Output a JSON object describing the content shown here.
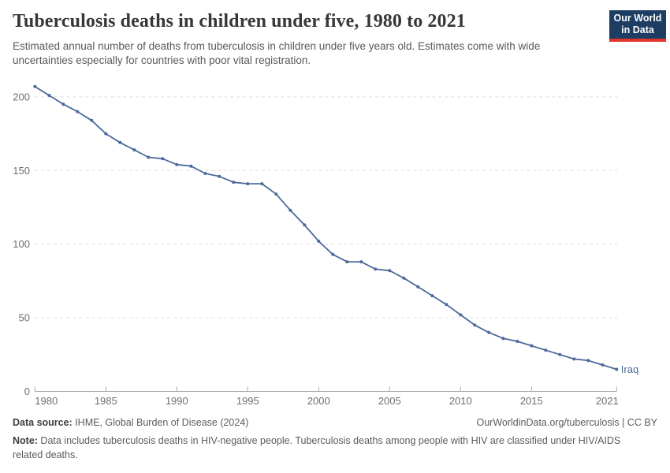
{
  "header": {
    "title": "Tuberculosis deaths in children under five, 1980 to 2021",
    "subtitle": "Estimated annual number of deaths from tuberculosis in children under five years old. Estimates come with wide uncertainties especially for countries with poor vital registration.",
    "logo_line1": "Our World",
    "logo_line2": "in Data"
  },
  "chart_data": {
    "type": "line",
    "title": "Tuberculosis deaths in children under five, 1980 to 2021",
    "xlabel": "",
    "ylabel": "",
    "xlim": [
      1980,
      2021
    ],
    "ylim": [
      0,
      210
    ],
    "x_ticks": [
      1980,
      1985,
      1990,
      1995,
      2000,
      2005,
      2010,
      2015,
      2021
    ],
    "y_ticks": [
      0,
      50,
      100,
      150,
      200
    ],
    "grid": "horizontal-dashed",
    "legend_position": "end-of-line-label",
    "x": [
      1980,
      1981,
      1982,
      1983,
      1984,
      1985,
      1986,
      1987,
      1988,
      1989,
      1990,
      1991,
      1992,
      1993,
      1994,
      1995,
      1996,
      1997,
      1998,
      1999,
      2000,
      2001,
      2002,
      2003,
      2004,
      2005,
      2006,
      2007,
      2008,
      2009,
      2010,
      2011,
      2012,
      2013,
      2014,
      2015,
      2016,
      2017,
      2018,
      2019,
      2020,
      2021
    ],
    "series": [
      {
        "name": "Iraq",
        "color": "#4c6a9c",
        "values": [
          207,
          201,
          195,
          190,
          184,
          175,
          169,
          164,
          159,
          158,
          154,
          153,
          148,
          146,
          142,
          141,
          141,
          134,
          123,
          113,
          102,
          93,
          88,
          88,
          83,
          82,
          77,
          71,
          65,
          59,
          52,
          45,
          40,
          36,
          34,
          31,
          28,
          25,
          22,
          21,
          18,
          15
        ]
      }
    ]
  },
  "footer": {
    "source_label": "Data source:",
    "source_value": " IHME, Global Burden of Disease (2024)",
    "link": "OurWorldinData.org/tuberculosis | CC BY",
    "note_label": "Note:",
    "note_value": " Data includes tuberculosis deaths in HIV-negative people. Tuberculosis deaths among people with HIV are classified under HIV/AIDS related deaths."
  },
  "colors": {
    "line": "#4c6a9c",
    "grid": "#dedede",
    "axis": "#a8a8a8",
    "tick_text": "#6f6f6f",
    "logo_bg": "#1d3d63",
    "logo_stripe": "#e0362d"
  }
}
